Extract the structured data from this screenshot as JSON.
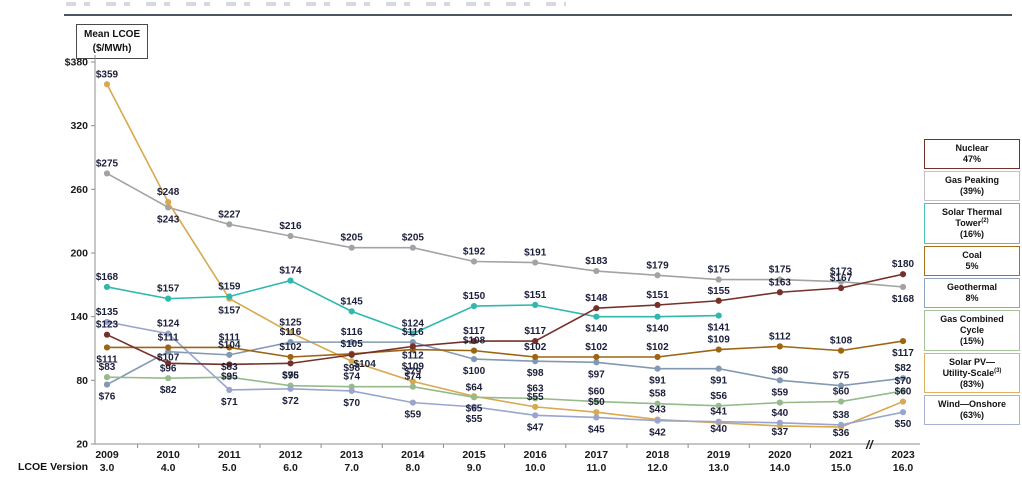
{
  "y_axis_box": {
    "line1": "Mean LCOE",
    "line2": "($/MWh)"
  },
  "x_axis_title": "LCOE Version",
  "chart_data": {
    "type": "line",
    "title": "Selected Historical Mean Unsubsidized LCOE Values — Mean LCOE ($/MWh)",
    "legend_position": "right",
    "grid": false,
    "x_categories": {
      "years": [
        "2009",
        "2010",
        "2011",
        "2012",
        "2013",
        "2014",
        "2015",
        "2016",
        "2017",
        "2018",
        "2019",
        "2020",
        "2021",
        "2023"
      ],
      "versions": [
        "3.0",
        "4.0",
        "5.0",
        "6.0",
        "7.0",
        "8.0",
        "9.0",
        "10.0",
        "11.0",
        "12.0",
        "13.0",
        "14.0",
        "15.0",
        "16.0"
      ]
    },
    "y_axis": {
      "min": 20,
      "max": 380,
      "unit": "$/MWh",
      "tick_values": [
        380,
        320,
        260,
        200,
        140,
        80,
        20
      ],
      "tick_labels": [
        "$380",
        "320",
        "260",
        "200",
        "140",
        "80",
        "20"
      ]
    },
    "axis_break": {
      "between": [
        "2021",
        "2023"
      ],
      "glyph": "//"
    },
    "series": [
      {
        "name": "Nuclear",
        "color": "#76302b",
        "legend": {
          "lines": [
            "Nuclear"
          ],
          "sup": "",
          "pct": "47%",
          "border": "#76302b"
        },
        "values": [
          123,
          96,
          95,
          96,
          104,
          112,
          117,
          117,
          148,
          151,
          155,
          163,
          167,
          180
        ]
      },
      {
        "name": "Gas Peaking",
        "color": "#a3a3a3",
        "legend": {
          "lines": [
            "Gas Peaking"
          ],
          "sup": "",
          "pct": "(39%)",
          "border": "#c2c2c2"
        },
        "values": [
          275,
          243,
          227,
          216,
          205,
          205,
          192,
          191,
          183,
          179,
          175,
          175,
          173,
          168
        ]
      },
      {
        "name": "Solar Thermal Tower",
        "color": "#2fb8ad",
        "legend": {
          "lines": [
            "Solar Thermal",
            "Tower"
          ],
          "sup": "(2)",
          "pct": "(16%)",
          "border": "#45c6bb"
        },
        "values": [
          168,
          157,
          159,
          174,
          145,
          124,
          150,
          151,
          140,
          140,
          141,
          null,
          null,
          null
        ]
      },
      {
        "name": "Coal",
        "color": "#9d6512",
        "legend": {
          "lines": [
            "Coal"
          ],
          "sup": "",
          "pct": "5%",
          "border": "#a8701c"
        },
        "values": [
          111,
          111,
          111,
          102,
          105,
          109,
          108,
          102,
          102,
          102,
          109,
          112,
          108,
          117
        ]
      },
      {
        "name": "Geothermal",
        "color": "#8399b3",
        "legend": {
          "lines": [
            "Geothermal"
          ],
          "sup": "",
          "pct": "8%",
          "border": "#8fa5bf"
        },
        "values": [
          76,
          107,
          104,
          116,
          116,
          116,
          100,
          98,
          97,
          91,
          91,
          80,
          75,
          82
        ]
      },
      {
        "name": "Gas Combined Cycle",
        "color": "#95bb8a",
        "legend": {
          "lines": [
            "Gas Combined",
            "Cycle"
          ],
          "sup": "",
          "pct": "(15%)",
          "border": "#a4c699"
        },
        "values": [
          83,
          82,
          83,
          75,
          74,
          74,
          64,
          63,
          60,
          58,
          56,
          59,
          60,
          70
        ]
      },
      {
        "name": "Solar PV—Utility-Scale",
        "color": "#d9a850",
        "legend": {
          "lines": [
            "Solar PV—",
            "Utility-Scale"
          ],
          "sup": "(3)",
          "pct": "(83%)",
          "border": "#e0b261"
        },
        "values": [
          359,
          248,
          157,
          125,
          98,
          79,
          65,
          55,
          50,
          43,
          40,
          37,
          36,
          60
        ]
      },
      {
        "name": "Wind—Onshore",
        "color": "#9aa5ce",
        "legend": {
          "lines": [
            "Wind—Onshore"
          ],
          "sup": "",
          "pct": "(63%)",
          "border": "#a8b2d6"
        },
        "values": [
          135,
          124,
          71,
          72,
          70,
          59,
          55,
          47,
          45,
          42,
          41,
          40,
          38,
          50
        ]
      }
    ]
  }
}
